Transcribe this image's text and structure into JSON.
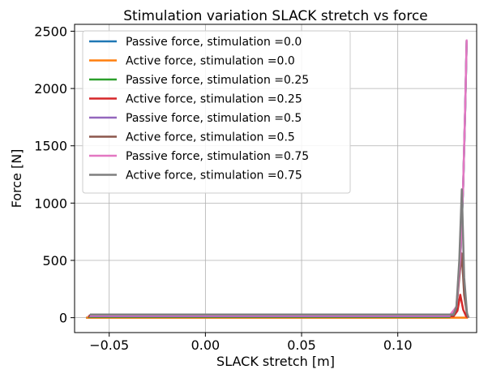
{
  "chart_data": {
    "type": "line",
    "title": "Stimulation variation SLACK stretch vs force",
    "xlabel": "SLACK stretch [m]",
    "ylabel": "Force [N]",
    "xlim": [
      -0.068,
      0.141
    ],
    "ylim": [
      -130,
      2560
    ],
    "xticks": [
      -0.05,
      0.0,
      0.05,
      0.1
    ],
    "xtick_labels": [
      "−0.05",
      "0.00",
      "0.05",
      "0.10"
    ],
    "yticks": [
      0,
      500,
      1000,
      1500,
      2000,
      2500
    ],
    "ytick_labels": [
      "0",
      "500",
      "1000",
      "1500",
      "2000",
      "2500"
    ],
    "grid": true,
    "legend_placement": "upper-left",
    "series": [
      {
        "name": "Passive force, stimulation =0.0",
        "color": "#1f77b4",
        "x": [
          -0.062,
          0.127,
          0.1305,
          0.1325,
          0.134,
          0.135,
          0.1358
        ],
        "y": [
          0,
          0,
          80,
          500,
          1150,
          1800,
          2420
        ]
      },
      {
        "name": "Active force, stimulation =0.0",
        "color": "#ff7f0e",
        "x": [
          -0.062,
          0.1365
        ],
        "y": [
          0,
          0
        ]
      },
      {
        "name": "Passive force, stimulation =0.25",
        "color": "#2ca02c",
        "x": [
          -0.061,
          0.127,
          0.1305,
          0.1325,
          0.134,
          0.135,
          0.1358
        ],
        "y": [
          7,
          7,
          85,
          505,
          1155,
          1805,
          2420
        ]
      },
      {
        "name": "Active force, stimulation =0.25",
        "color": "#d62728",
        "x": [
          -0.061,
          0.129,
          0.131,
          0.1325,
          0.134,
          0.1355,
          0.1365
        ],
        "y": [
          12,
          12,
          60,
          200,
          70,
          15,
          0
        ]
      },
      {
        "name": "Passive force, stimulation =0.5",
        "color": "#9467bd",
        "x": [
          -0.0605,
          0.127,
          0.1305,
          0.1325,
          0.134,
          0.135,
          0.1358
        ],
        "y": [
          14,
          14,
          90,
          510,
          1160,
          1810,
          2420
        ]
      },
      {
        "name": "Active force, stimulation =0.5",
        "color": "#8c564b",
        "x": [
          -0.0605,
          0.129,
          0.1305,
          0.132,
          0.1333,
          0.1345,
          0.136,
          0.1368
        ],
        "y": [
          20,
          20,
          80,
          350,
          560,
          200,
          30,
          0
        ]
      },
      {
        "name": "Passive force, stimulation =0.75",
        "color": "#e377c2",
        "x": [
          -0.06,
          0.127,
          0.1305,
          0.1325,
          0.134,
          0.135,
          0.1358,
          0.1362
        ],
        "y": [
          21,
          21,
          95,
          515,
          1165,
          1815,
          2420,
          2420
        ]
      },
      {
        "name": "Active force, stimulation =0.75",
        "color": "#7f7f7f",
        "x": [
          -0.06,
          0.129,
          0.1305,
          0.132,
          0.1333,
          0.1345,
          0.136,
          0.1368
        ],
        "y": [
          27,
          27,
          100,
          500,
          1120,
          350,
          40,
          0
        ]
      }
    ]
  }
}
